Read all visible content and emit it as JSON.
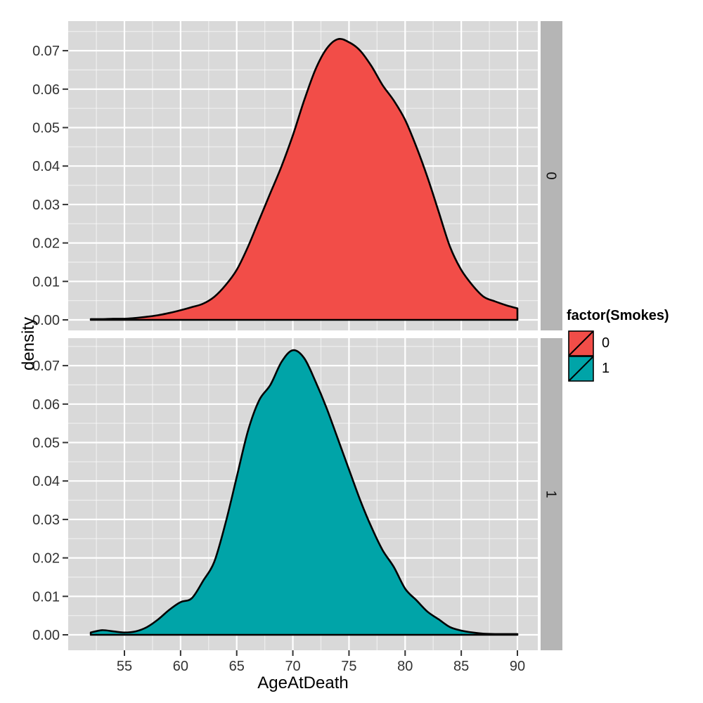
{
  "chart_data": {
    "type": "area",
    "subtype": "faceted-density-plot",
    "title": "",
    "xlabel": "AgeAtDeath",
    "ylabel": "density",
    "x_ticks": [
      55,
      60,
      65,
      70,
      75,
      80,
      85,
      90
    ],
    "y_ticks": [
      0.0,
      0.01,
      0.02,
      0.03,
      0.04,
      0.05,
      0.06,
      0.07
    ],
    "y_tick_labels": [
      "0.00",
      "0.01",
      "0.02",
      "0.03",
      "0.04",
      "0.05",
      "0.06",
      "0.07"
    ],
    "xlim": [
      50.0,
      91.8
    ],
    "ylim": [
      -0.0027,
      0.0777
    ],
    "grid": "major-and-minor",
    "panel_background": "#D9D9D9",
    "grid_color": "#FFFFFF",
    "strip_background": "#B5B5B5",
    "tick_label_color": "#333333",
    "outline_color": "#000000",
    "legend_position": "right",
    "legend": {
      "title": "factor(Smokes)",
      "items": [
        {
          "label": "0",
          "color": "#F24D48"
        },
        {
          "label": "1",
          "color": "#00A4A8"
        }
      ]
    },
    "facets": [
      {
        "label": "0",
        "series": "Smokes = 0",
        "fill": "#F24D48",
        "x": [
          52,
          53,
          54,
          55,
          56,
          57,
          58,
          59,
          60,
          61,
          62,
          63,
          64,
          65,
          66,
          67,
          68,
          69,
          70,
          71,
          72,
          73,
          74,
          75,
          76,
          77,
          78,
          79,
          80,
          81,
          82,
          83,
          84,
          85,
          86,
          87,
          88,
          89,
          90
        ],
        "density": [
          0.0002,
          0.0002,
          0.0003,
          0.0003,
          0.0005,
          0.0008,
          0.0012,
          0.0018,
          0.0025,
          0.0033,
          0.0042,
          0.006,
          0.009,
          0.013,
          0.019,
          0.026,
          0.033,
          0.04,
          0.048,
          0.057,
          0.065,
          0.0705,
          0.073,
          0.0722,
          0.07,
          0.066,
          0.061,
          0.057,
          0.052,
          0.045,
          0.037,
          0.028,
          0.019,
          0.013,
          0.009,
          0.006,
          0.0048,
          0.0038,
          0.003
        ]
      },
      {
        "label": "1",
        "series": "Smokes = 1",
        "fill": "#00A4A8",
        "x": [
          52,
          53,
          54,
          55,
          56,
          57,
          58,
          59,
          60,
          61,
          62,
          63,
          64,
          65,
          66,
          67,
          68,
          69,
          70,
          71,
          72,
          73,
          74,
          75,
          76,
          77,
          78,
          79,
          80,
          81,
          82,
          83,
          84,
          85,
          86,
          87,
          88,
          89,
          90
        ],
        "density": [
          0.0006,
          0.0012,
          0.0009,
          0.0006,
          0.0009,
          0.002,
          0.004,
          0.0065,
          0.0085,
          0.0095,
          0.014,
          0.019,
          0.029,
          0.041,
          0.053,
          0.061,
          0.065,
          0.071,
          0.074,
          0.072,
          0.066,
          0.059,
          0.051,
          0.043,
          0.035,
          0.028,
          0.022,
          0.0176,
          0.012,
          0.009,
          0.006,
          0.004,
          0.002,
          0.0011,
          0.0006,
          0.0003,
          0.0002,
          0.0002,
          0.0002
        ]
      }
    ]
  }
}
